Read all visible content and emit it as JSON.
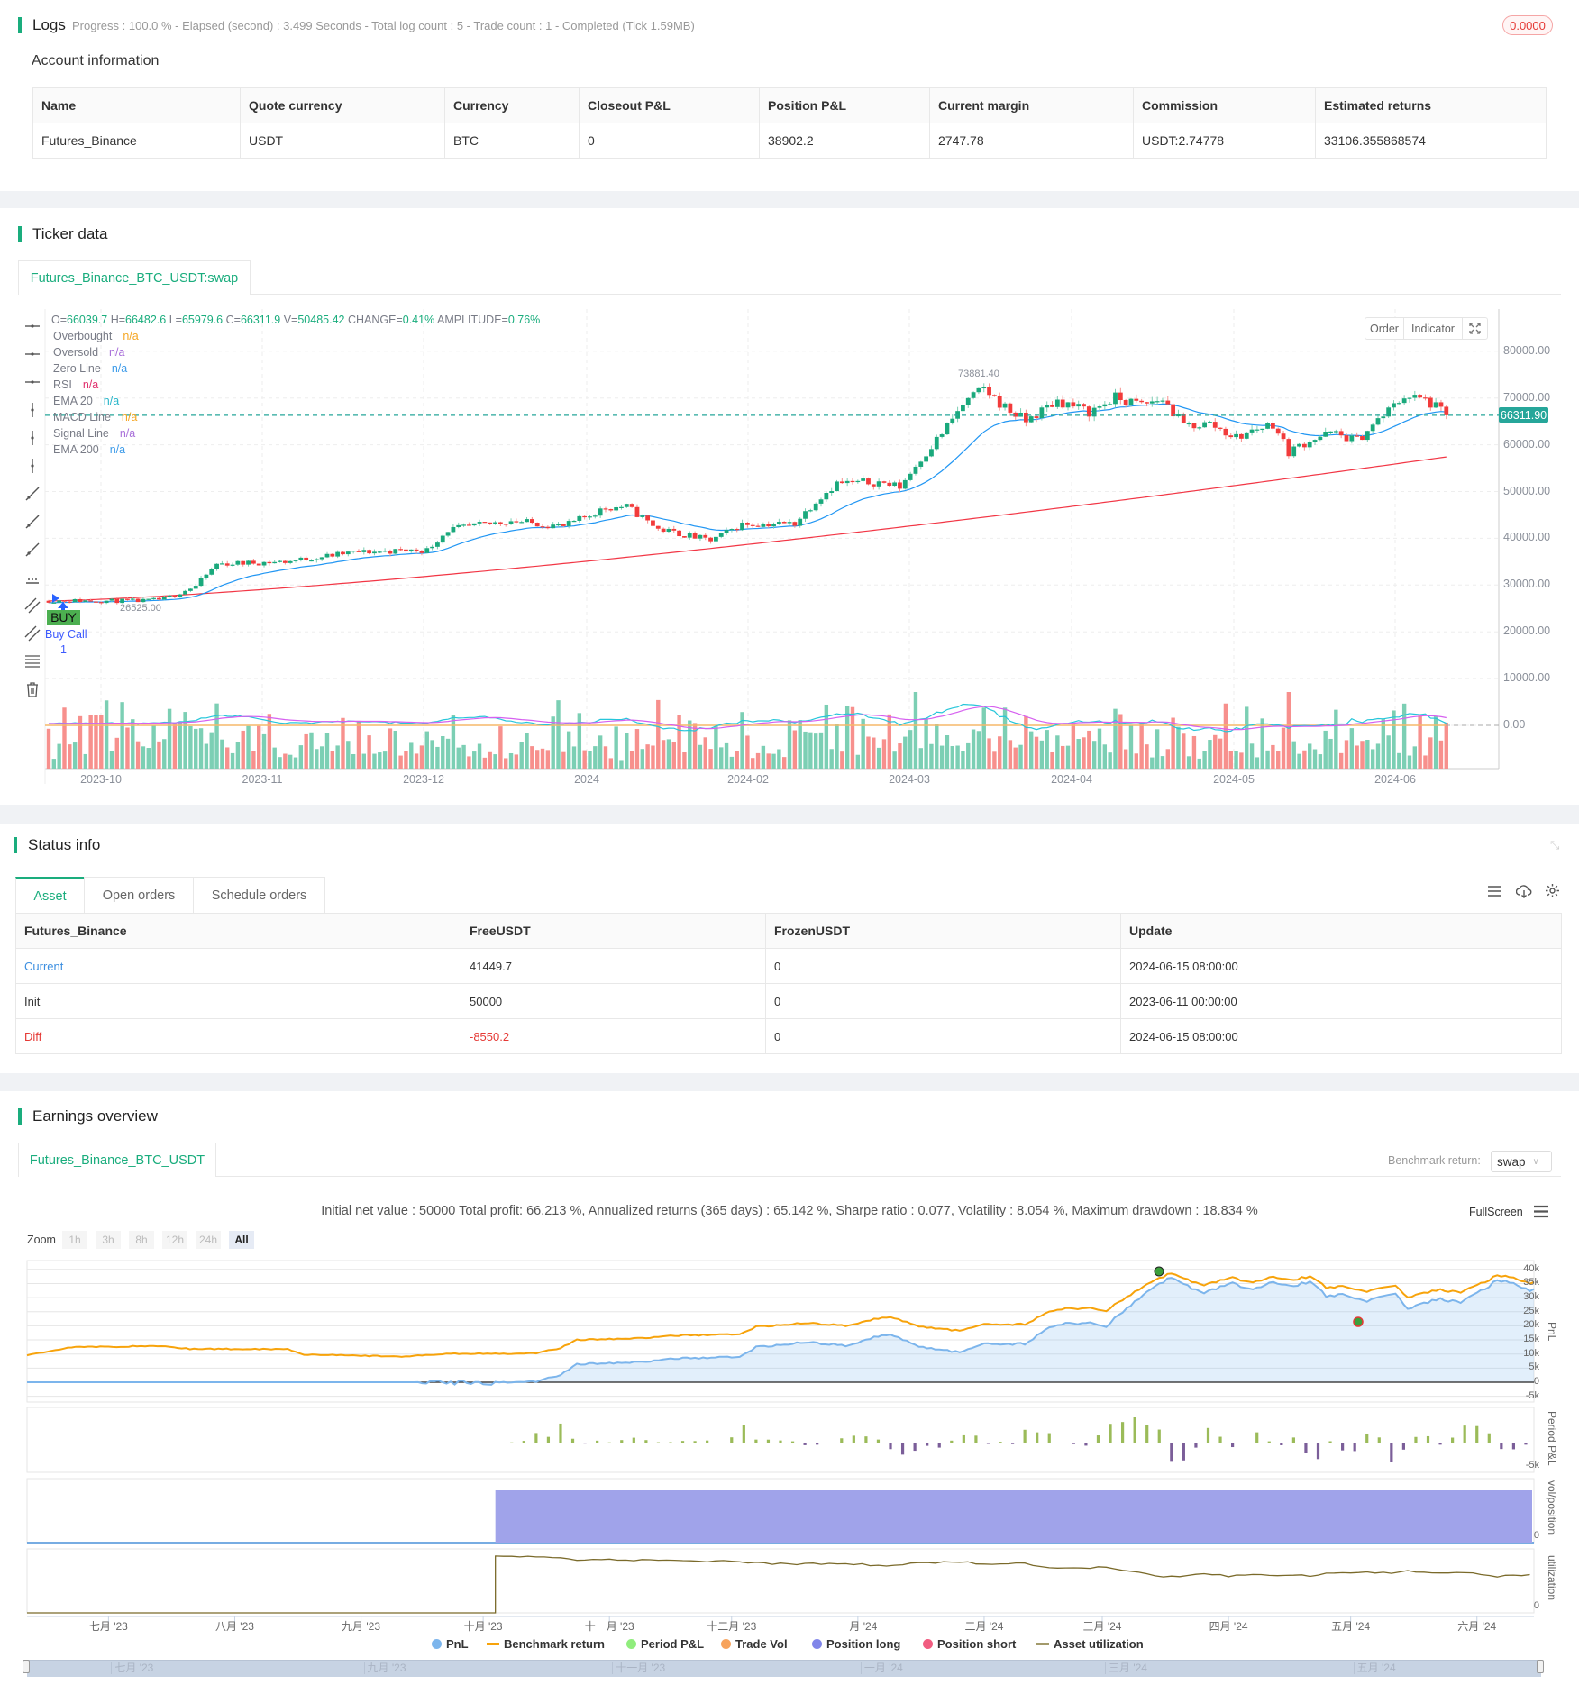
{
  "logs": {
    "title": "Logs",
    "summary": "Progress : 100.0 % - Elapsed (second) : 3.499  Seconds - Total log count : 5 - Trade count : 1 - Completed (Tick 1.59MB)",
    "badge": "0.0000"
  },
  "account": {
    "title": "Account information",
    "columns": [
      "Name",
      "Quote currency",
      "Currency",
      "Closeout P&L",
      "Position P&L",
      "Current margin",
      "Commission",
      "Estimated returns"
    ],
    "row": [
      "Futures_Binance",
      "USDT",
      "BTC",
      "0",
      "38902.2",
      "2747.78",
      "USDT:2.74778",
      "33106.355868574"
    ]
  },
  "ticker": {
    "title": "Ticker data",
    "tab": "Futures_Binance_BTC_USDT:swap",
    "ohlc": {
      "o_label": "O=",
      "o": "66039.7",
      "h_label": " H=",
      "h": "66482.6",
      "l_label": " L=",
      "l": "65979.6",
      "c_label": " C=",
      "c": "66311.9",
      "v_label": " V=",
      "v": "50485.42",
      "change_label": " CHANGE=",
      "change": "0.41%",
      "amp_label": " AMPLITUDE=",
      "amp": "0.76%"
    },
    "indicators": [
      {
        "name": "Overbought",
        "value": "n/a",
        "color": "#f5a623"
      },
      {
        "name": "Oversold",
        "value": "n/a",
        "color": "#a86fd9"
      },
      {
        "name": "Zero Line",
        "value": "n/a",
        "color": "#3d9be9"
      },
      {
        "name": "RSI",
        "value": "n/a",
        "color": "#e0306d"
      },
      {
        "name": "EMA 20",
        "value": "n/a",
        "color": "#26b5c9"
      },
      {
        "name": "MACD Line",
        "value": "n/a",
        "color": "#f5a623"
      },
      {
        "name": "Signal Line",
        "value": "n/a",
        "color": "#a86fd9"
      },
      {
        "name": "EMA 200",
        "value": "n/a",
        "color": "#3d9be9"
      }
    ],
    "buttons": {
      "order": "Order",
      "indicator": "Indicator"
    },
    "price_ticks": [
      "80000.00",
      "70000.00",
      "60000.00",
      "50000.00",
      "40000.00",
      "30000.00",
      "20000.00",
      "10000.00",
      "0.00"
    ],
    "last_price": "66311.90",
    "max_label": "73881.40",
    "min_label": "26525.00",
    "buy_label": "BUY",
    "buy_call": "Buy Call",
    "buy_qty": "1",
    "date_ticks": [
      "2023-10",
      "2023-11",
      "2023-12",
      "2024",
      "2024-02",
      "2024-03",
      "2024-04",
      "2024-05",
      "2024-06"
    ],
    "colors": {
      "up": "#26a69a",
      "down": "#ef5350",
      "ema20": "#2196f3",
      "ema200": "#f23645",
      "last": "#26a69a"
    }
  },
  "status": {
    "title": "Status info",
    "tabs": [
      "Asset",
      "Open orders",
      "Schedule orders"
    ],
    "columns": [
      "Futures_Binance",
      "FreeUSDT",
      "FrozenUSDT",
      "Update"
    ],
    "rows": [
      {
        "label": "Current",
        "free": "41449.7",
        "frozen": "0",
        "update": "2024-06-15 08:00:00"
      },
      {
        "label": "Init",
        "free": "50000",
        "frozen": "0",
        "update": "2023-06-11 00:00:00"
      },
      {
        "label": "Diff",
        "free": "-8550.2",
        "frozen": "0",
        "update": "2024-06-15 08:00:00"
      }
    ]
  },
  "earnings": {
    "title": "Earnings overview",
    "tab": "Futures_Binance_BTC_USDT",
    "benchmark_label": "Benchmark return:",
    "benchmark_value": "swap",
    "summary": "Initial net value : 50000 Total profit: 66.213 %, Annualized returns (365 days) : 65.142 %, Sharpe ratio : 0.077, Volatility : 8.054 %, Maximum drawdown : 18.834 %",
    "fullscreen": "FullScreen",
    "zoom_label": "Zoom",
    "zoom_options": [
      "1h",
      "3h",
      "8h",
      "12h",
      "24h",
      "All"
    ],
    "zoom_selected": "All",
    "pnl_ticks": [
      "40k",
      "35k",
      "30k",
      "25k",
      "20k",
      "15k",
      "10k",
      "5k",
      "0",
      "-5k"
    ],
    "period_tick": "-5k",
    "vol_tick": "0",
    "util_tick": "0",
    "panel_labels": [
      "PnL",
      "Period P&L",
      "vol/position",
      "utilization"
    ],
    "month_ticks": [
      "七月 '23",
      "八月 '23",
      "九月 '23",
      "十月 '23",
      "十一月 '23",
      "十二月 '23",
      "一月 '24",
      "二月 '24",
      "三月 '24",
      "四月 '24",
      "五月 '24",
      "六月 '24"
    ],
    "navigator_ticks": [
      "七月 '23",
      "九月 '23",
      "十一月 '23",
      "一月 '24",
      "三月 '24",
      "五月 '24"
    ],
    "legend": [
      {
        "name": "PnL",
        "color": "#7cb5ec"
      },
      {
        "name": "Benchmark return",
        "color": "#f7a30b"
      },
      {
        "name": "Period P&L",
        "color": "#90ed7d"
      },
      {
        "name": "Trade Vol",
        "color": "#f7a35c"
      },
      {
        "name": "Position long",
        "color": "#8085e9"
      },
      {
        "name": "Position short",
        "color": "#f15c80"
      },
      {
        "name": "Asset utilization",
        "color": "#a39a6b"
      }
    ]
  }
}
